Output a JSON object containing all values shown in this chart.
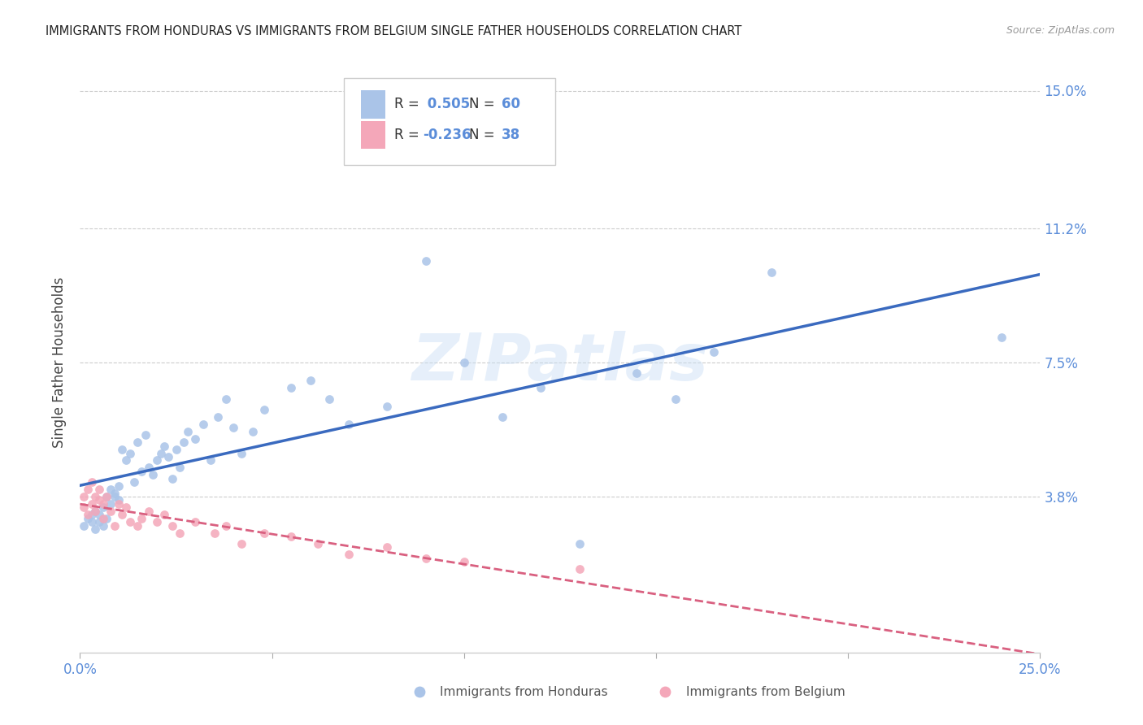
{
  "title": "IMMIGRANTS FROM HONDURAS VS IMMIGRANTS FROM BELGIUM SINGLE FATHER HOUSEHOLDS CORRELATION CHART",
  "source": "Source: ZipAtlas.com",
  "ylabel": "Single Father Households",
  "xlim": [
    0.0,
    0.25
  ],
  "ylim": [
    -0.005,
    0.155
  ],
  "watermark": "ZIPatlas",
  "right_yticks": [
    0.0,
    0.038,
    0.075,
    0.112,
    0.15
  ],
  "right_yticklabels": [
    "",
    "3.8%",
    "7.5%",
    "11.2%",
    "15.0%"
  ],
  "honduras_x": [
    0.001,
    0.002,
    0.003,
    0.003,
    0.004,
    0.004,
    0.005,
    0.005,
    0.006,
    0.006,
    0.007,
    0.007,
    0.008,
    0.008,
    0.009,
    0.009,
    0.01,
    0.01,
    0.011,
    0.012,
    0.013,
    0.014,
    0.015,
    0.016,
    0.017,
    0.018,
    0.019,
    0.02,
    0.021,
    0.022,
    0.023,
    0.024,
    0.025,
    0.026,
    0.027,
    0.028,
    0.03,
    0.032,
    0.034,
    0.036,
    0.038,
    0.04,
    0.042,
    0.045,
    0.048,
    0.055,
    0.06,
    0.065,
    0.07,
    0.08,
    0.09,
    0.1,
    0.11,
    0.12,
    0.13,
    0.145,
    0.155,
    0.165,
    0.18,
    0.24
  ],
  "honduras_y": [
    0.03,
    0.032,
    0.031,
    0.033,
    0.029,
    0.034,
    0.031,
    0.033,
    0.035,
    0.03,
    0.038,
    0.032,
    0.04,
    0.036,
    0.039,
    0.038,
    0.041,
    0.037,
    0.051,
    0.048,
    0.05,
    0.042,
    0.053,
    0.045,
    0.055,
    0.046,
    0.044,
    0.048,
    0.05,
    0.052,
    0.049,
    0.043,
    0.051,
    0.046,
    0.053,
    0.056,
    0.054,
    0.058,
    0.048,
    0.06,
    0.065,
    0.057,
    0.05,
    0.056,
    0.062,
    0.068,
    0.07,
    0.065,
    0.058,
    0.063,
    0.103,
    0.075,
    0.06,
    0.068,
    0.025,
    0.072,
    0.065,
    0.078,
    0.1,
    0.082
  ],
  "belgium_x": [
    0.001,
    0.001,
    0.002,
    0.002,
    0.003,
    0.003,
    0.004,
    0.004,
    0.005,
    0.005,
    0.006,
    0.006,
    0.007,
    0.008,
    0.009,
    0.01,
    0.011,
    0.012,
    0.013,
    0.015,
    0.016,
    0.018,
    0.02,
    0.022,
    0.024,
    0.026,
    0.03,
    0.035,
    0.038,
    0.042,
    0.048,
    0.055,
    0.062,
    0.07,
    0.08,
    0.09,
    0.1,
    0.13
  ],
  "belgium_y": [
    0.038,
    0.035,
    0.04,
    0.033,
    0.036,
    0.042,
    0.034,
    0.038,
    0.037,
    0.04,
    0.036,
    0.032,
    0.038,
    0.034,
    0.03,
    0.036,
    0.033,
    0.035,
    0.031,
    0.03,
    0.032,
    0.034,
    0.031,
    0.033,
    0.03,
    0.028,
    0.031,
    0.028,
    0.03,
    0.025,
    0.028,
    0.027,
    0.025,
    0.022,
    0.024,
    0.021,
    0.02,
    0.018
  ],
  "blue_line_color": "#3a6abf",
  "pink_line_color": "#d96080",
  "dot_blue": "#aac4e8",
  "dot_pink": "#f4a7b9",
  "grid_color": "#cccccc",
  "axis_color": "#5b8dd9",
  "background_color": "#ffffff",
  "legend_r1": " 0.505",
  "legend_n1": "60",
  "legend_r2": "-0.236",
  "legend_n2": "38"
}
